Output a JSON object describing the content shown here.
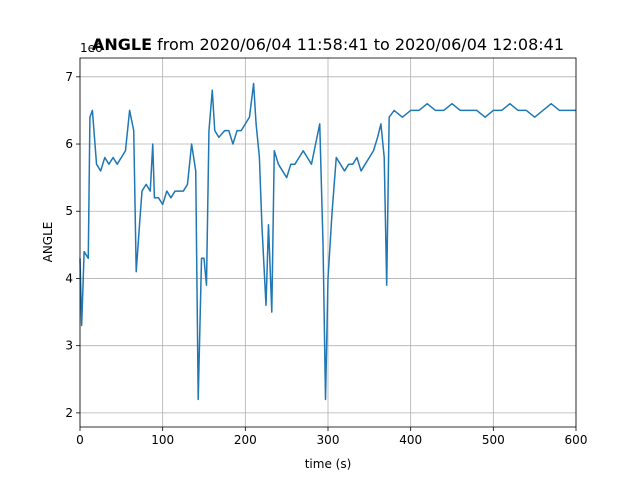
{
  "chart_data": {
    "type": "line",
    "title_bold": "ANGLE",
    "title_rest": " from 2020/06/04 11:58:41 to 2020/06/04 12:08:41",
    "offset_text": "1e6",
    "xlabel": "time (s)",
    "ylabel": "ANGLE",
    "color": "#1f77b4",
    "grid": true,
    "xlim": [
      0,
      600
    ],
    "ylim": [
      1.79,
      7.28
    ],
    "xticks": [
      0,
      100,
      200,
      300,
      400,
      500,
      600
    ],
    "yticks": [
      2,
      3,
      4,
      5,
      6,
      7
    ],
    "x": [
      0,
      2,
      5,
      10,
      12,
      15,
      20,
      25,
      30,
      35,
      40,
      45,
      50,
      55,
      60,
      65,
      68,
      72,
      75,
      80,
      85,
      88,
      90,
      95,
      100,
      105,
      110,
      115,
      120,
      125,
      130,
      135,
      140,
      143,
      147,
      150,
      153,
      156,
      160,
      163,
      168,
      175,
      180,
      185,
      190,
      195,
      200,
      205,
      210,
      213,
      217,
      220,
      225,
      228,
      232,
      235,
      240,
      245,
      250,
      255,
      260,
      265,
      270,
      275,
      280,
      285,
      290,
      294,
      297,
      300,
      305,
      310,
      315,
      320,
      325,
      330,
      335,
      340,
      345,
      350,
      355,
      360,
      364,
      368,
      371,
      374,
      380,
      390,
      400,
      410,
      420,
      430,
      440,
      450,
      460,
      470,
      480,
      490,
      500,
      510,
      520,
      530,
      540,
      550,
      560,
      570,
      580,
      590,
      600
    ],
    "values": [
      4.3,
      3.3,
      4.4,
      4.3,
      6.4,
      6.5,
      5.7,
      5.6,
      5.8,
      5.7,
      5.8,
      5.7,
      5.8,
      5.9,
      6.5,
      6.2,
      4.1,
      4.8,
      5.3,
      5.4,
      5.3,
      6.0,
      5.2,
      5.2,
      5.1,
      5.3,
      5.2,
      5.3,
      5.3,
      5.3,
      5.4,
      6.0,
      5.6,
      2.2,
      4.3,
      4.3,
      3.9,
      6.2,
      6.8,
      6.2,
      6.1,
      6.2,
      6.2,
      6.0,
      6.2,
      6.2,
      6.3,
      6.4,
      6.9,
      6.3,
      5.8,
      4.8,
      3.6,
      4.8,
      3.5,
      5.9,
      5.7,
      5.6,
      5.5,
      5.7,
      5.7,
      5.8,
      5.9,
      5.8,
      5.7,
      6.0,
      6.3,
      4.5,
      2.2,
      4.0,
      5.0,
      5.8,
      5.7,
      5.6,
      5.7,
      5.7,
      5.8,
      5.6,
      5.7,
      5.8,
      5.9,
      6.1,
      6.3,
      5.8,
      3.9,
      6.4,
      6.5,
      6.4,
      6.5,
      6.5,
      6.6,
      6.5,
      6.5,
      6.6,
      6.5,
      6.5,
      6.5,
      6.4,
      6.5,
      6.5,
      6.6,
      6.5,
      6.5,
      6.4,
      6.5,
      6.6,
      6.5,
      6.5,
      6.5
    ]
  }
}
